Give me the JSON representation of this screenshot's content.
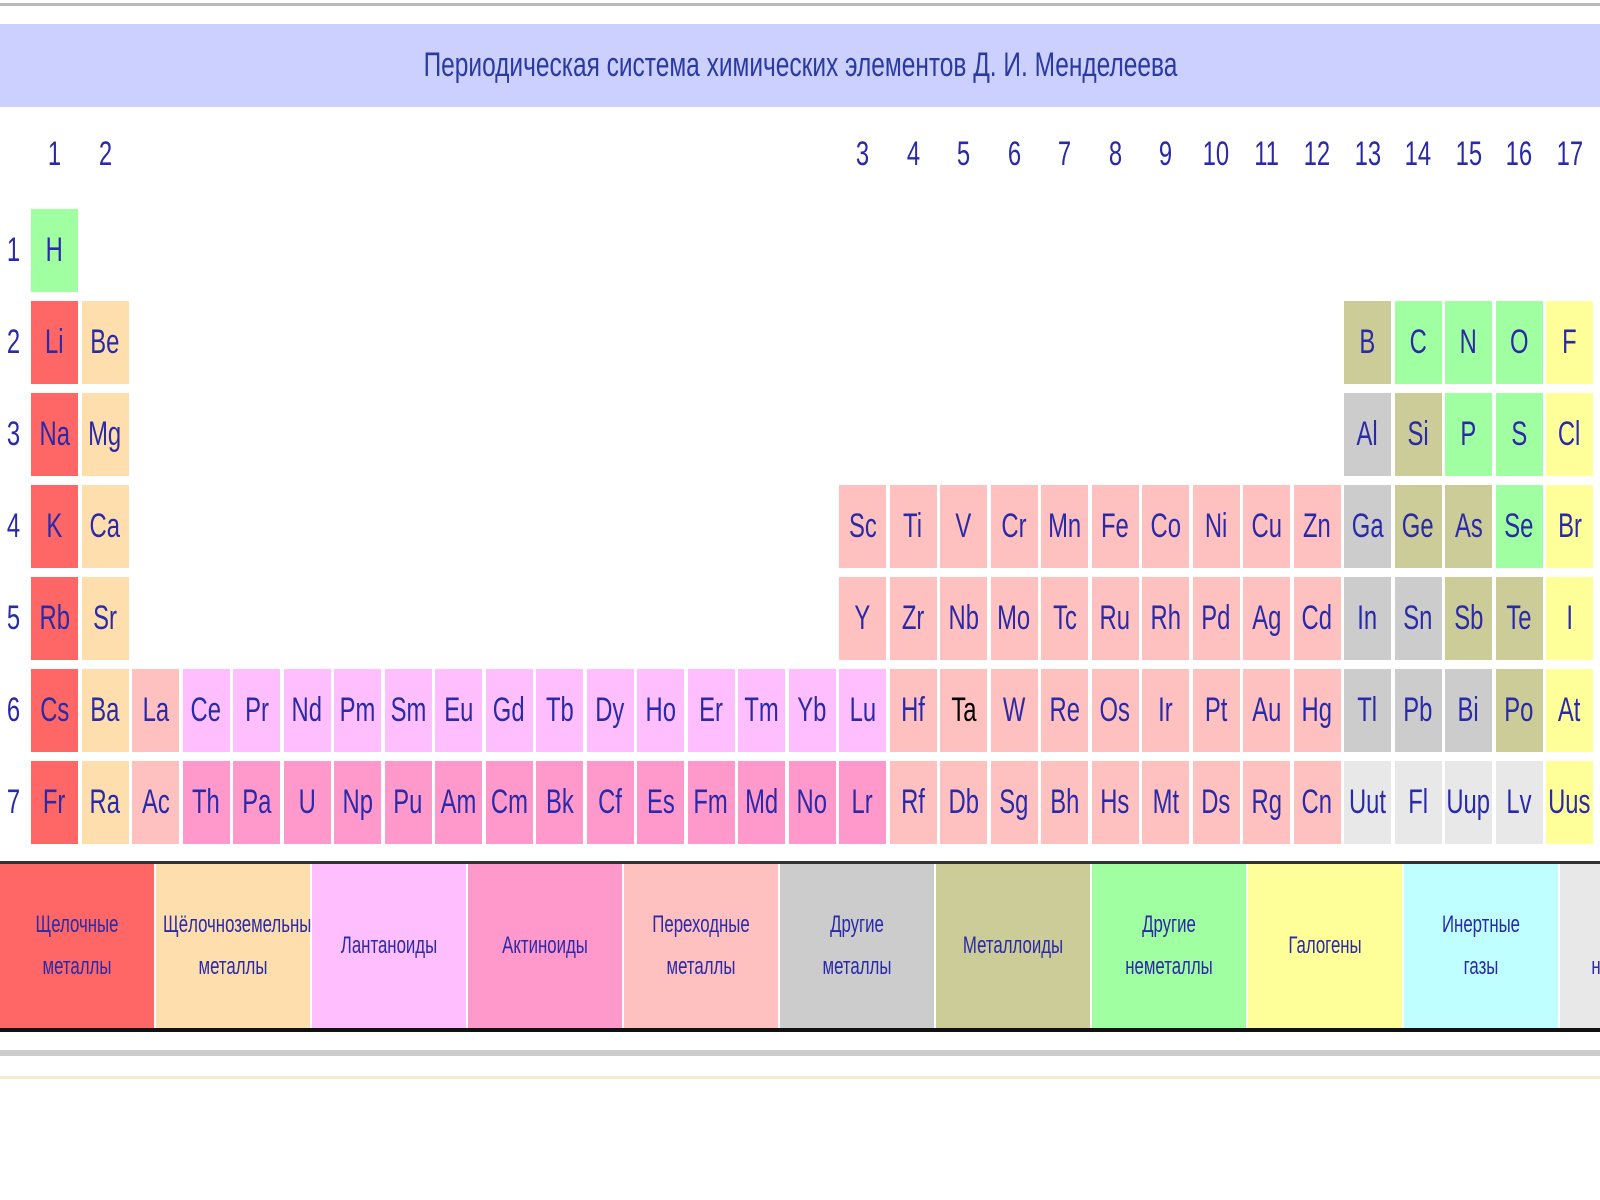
{
  "header": {
    "title": "Периодическая система химических элементов Д. И. Менделеева"
  },
  "groups": [
    "1",
    "2",
    "3",
    "4",
    "5",
    "6",
    "7",
    "8",
    "9",
    "10",
    "11",
    "12",
    "13",
    "14",
    "15",
    "16",
    "17"
  ],
  "group_columns": [
    1,
    2,
    17,
    18,
    19,
    20,
    21,
    22,
    23,
    24,
    25,
    26,
    27,
    28,
    29,
    30,
    31
  ],
  "categories": [
    {
      "name": "Щелочные металлы",
      "color": "#ff6666"
    },
    {
      "name": "Щёлочноземельные металлы",
      "color": "#ffdead"
    },
    {
      "name": "Лантаноиды",
      "color": "#ffbfff"
    },
    {
      "name": "Актиноиды",
      "color": "#ff99cc"
    },
    {
      "name": "Переходные металлы",
      "color": "#ffc0c0"
    },
    {
      "name": "Другие металлы",
      "color": "#cccccc"
    },
    {
      "name": "Металлоиды",
      "color": "#cccc99"
    },
    {
      "name": "Другие неметаллы",
      "color": "#a0ffa0"
    },
    {
      "name": "Галогены",
      "color": "#ffff99"
    },
    {
      "name": "Инертные газы",
      "color": "#c0ffff"
    },
    {
      "name": "Свойства неизвестны",
      "color": "#e8e8e8"
    }
  ],
  "periods": [
    {
      "label": "1",
      "cells": [
        {
          "symbol": "H",
          "category": 7
        },
        null,
        null,
        null,
        null,
        null,
        null,
        null,
        null,
        null,
        null,
        null,
        null,
        null,
        null,
        null,
        null,
        null,
        null,
        null,
        null,
        null,
        null,
        null,
        null,
        null,
        null,
        null,
        null,
        null,
        null
      ]
    },
    {
      "label": "2",
      "cells": [
        {
          "symbol": "Li",
          "category": 0
        },
        {
          "symbol": "Be",
          "category": 1
        },
        null,
        null,
        null,
        null,
        null,
        null,
        null,
        null,
        null,
        null,
        null,
        null,
        null,
        null,
        null,
        null,
        null,
        null,
        null,
        null,
        null,
        null,
        null,
        null,
        {
          "symbol": "B",
          "category": 6
        },
        {
          "symbol": "C",
          "category": 7
        },
        {
          "symbol": "N",
          "category": 7
        },
        {
          "symbol": "O",
          "category": 7
        },
        {
          "symbol": "F",
          "category": 8
        }
      ]
    },
    {
      "label": "3",
      "cells": [
        {
          "symbol": "Na",
          "category": 0
        },
        {
          "symbol": "Mg",
          "category": 1
        },
        null,
        null,
        null,
        null,
        null,
        null,
        null,
        null,
        null,
        null,
        null,
        null,
        null,
        null,
        null,
        null,
        null,
        null,
        null,
        null,
        null,
        null,
        null,
        null,
        {
          "symbol": "Al",
          "category": 5
        },
        {
          "symbol": "Si",
          "category": 6
        },
        {
          "symbol": "P",
          "category": 7
        },
        {
          "symbol": "S",
          "category": 7
        },
        {
          "symbol": "Cl",
          "category": 8
        }
      ]
    },
    {
      "label": "4",
      "cells": [
        {
          "symbol": "K",
          "category": 0
        },
        {
          "symbol": "Ca",
          "category": 1
        },
        null,
        null,
        null,
        null,
        null,
        null,
        null,
        null,
        null,
        null,
        null,
        null,
        null,
        null,
        {
          "symbol": "Sc",
          "category": 4
        },
        {
          "symbol": "Ti",
          "category": 4
        },
        {
          "symbol": "V",
          "category": 4
        },
        {
          "symbol": "Cr",
          "category": 4
        },
        {
          "symbol": "Mn",
          "category": 4
        },
        {
          "symbol": "Fe",
          "category": 4
        },
        {
          "symbol": "Co",
          "category": 4
        },
        {
          "symbol": "Ni",
          "category": 4
        },
        {
          "symbol": "Cu",
          "category": 4
        },
        {
          "symbol": "Zn",
          "category": 4
        },
        {
          "symbol": "Ga",
          "category": 5
        },
        {
          "symbol": "Ge",
          "category": 6
        },
        {
          "symbol": "As",
          "category": 6
        },
        {
          "symbol": "Se",
          "category": 7
        },
        {
          "symbol": "Br",
          "category": 8
        }
      ]
    },
    {
      "label": "5",
      "cells": [
        {
          "symbol": "Rb",
          "category": 0
        },
        {
          "symbol": "Sr",
          "category": 1
        },
        null,
        null,
        null,
        null,
        null,
        null,
        null,
        null,
        null,
        null,
        null,
        null,
        null,
        null,
        {
          "symbol": "Y",
          "category": 4
        },
        {
          "symbol": "Zr",
          "category": 4
        },
        {
          "symbol": "Nb",
          "category": 4
        },
        {
          "symbol": "Mo",
          "category": 4
        },
        {
          "symbol": "Tc",
          "category": 4
        },
        {
          "symbol": "Ru",
          "category": 4
        },
        {
          "symbol": "Rh",
          "category": 4
        },
        {
          "symbol": "Pd",
          "category": 4
        },
        {
          "symbol": "Ag",
          "category": 4
        },
        {
          "symbol": "Cd",
          "category": 4
        },
        {
          "symbol": "In",
          "category": 5
        },
        {
          "symbol": "Sn",
          "category": 5
        },
        {
          "symbol": "Sb",
          "category": 6
        },
        {
          "symbol": "Te",
          "category": 6
        },
        {
          "symbol": "I",
          "category": 8
        }
      ]
    },
    {
      "label": "6",
      "cells": [
        {
          "symbol": "Cs",
          "category": 0
        },
        {
          "symbol": "Ba",
          "category": 1
        },
        {
          "symbol": "La",
          "category": 4
        },
        {
          "symbol": "Ce",
          "category": 2
        },
        {
          "symbol": "Pr",
          "category": 2
        },
        {
          "symbol": "Nd",
          "category": 2
        },
        {
          "symbol": "Pm",
          "category": 2
        },
        {
          "symbol": "Sm",
          "category": 2
        },
        {
          "symbol": "Eu",
          "category": 2
        },
        {
          "symbol": "Gd",
          "category": 2
        },
        {
          "symbol": "Tb",
          "category": 2
        },
        {
          "symbol": "Dy",
          "category": 2
        },
        {
          "symbol": "Ho",
          "category": 2
        },
        {
          "symbol": "Er",
          "category": 2
        },
        {
          "symbol": "Tm",
          "category": 2
        },
        {
          "symbol": "Yb",
          "category": 2
        },
        {
          "symbol": "Lu",
          "category": 2
        },
        {
          "symbol": "Hf",
          "category": 4
        },
        {
          "symbol": "Ta",
          "category": 4,
          "text_color": "#000000"
        },
        {
          "symbol": "W",
          "category": 4
        },
        {
          "symbol": "Re",
          "category": 4
        },
        {
          "symbol": "Os",
          "category": 4
        },
        {
          "symbol": "Ir",
          "category": 4
        },
        {
          "symbol": "Pt",
          "category": 4
        },
        {
          "symbol": "Au",
          "category": 4
        },
        {
          "symbol": "Hg",
          "category": 4
        },
        {
          "symbol": "Tl",
          "category": 5
        },
        {
          "symbol": "Pb",
          "category": 5
        },
        {
          "symbol": "Bi",
          "category": 5
        },
        {
          "symbol": "Po",
          "category": 6
        },
        {
          "symbol": "At",
          "category": 8
        }
      ]
    },
    {
      "label": "7",
      "cells": [
        {
          "symbol": "Fr",
          "category": 0
        },
        {
          "symbol": "Ra",
          "category": 1
        },
        {
          "symbol": "Ac",
          "category": 4
        },
        {
          "symbol": "Th",
          "category": 3
        },
        {
          "symbol": "Pa",
          "category": 3
        },
        {
          "symbol": "U",
          "category": 3
        },
        {
          "symbol": "Np",
          "category": 3
        },
        {
          "symbol": "Pu",
          "category": 3
        },
        {
          "symbol": "Am",
          "category": 3
        },
        {
          "symbol": "Cm",
          "category": 3
        },
        {
          "symbol": "Bk",
          "category": 3
        },
        {
          "symbol": "Cf",
          "category": 3
        },
        {
          "symbol": "Es",
          "category": 3
        },
        {
          "symbol": "Fm",
          "category": 3
        },
        {
          "symbol": "Md",
          "category": 3
        },
        {
          "symbol": "No",
          "category": 3
        },
        {
          "symbol": "Lr",
          "category": 3
        },
        {
          "symbol": "Rf",
          "category": 4
        },
        {
          "symbol": "Db",
          "category": 4
        },
        {
          "symbol": "Sg",
          "category": 4
        },
        {
          "symbol": "Bh",
          "category": 4
        },
        {
          "symbol": "Hs",
          "category": 4
        },
        {
          "symbol": "Mt",
          "category": 4
        },
        {
          "symbol": "Ds",
          "category": 4
        },
        {
          "symbol": "Rg",
          "category": 4
        },
        {
          "symbol": "Cn",
          "category": 4
        },
        {
          "symbol": "Uut",
          "category": 10
        },
        {
          "symbol": "Fl",
          "category": 10
        },
        {
          "symbol": "Uup",
          "category": 10
        },
        {
          "symbol": "Lv",
          "category": 10
        },
        {
          "symbol": "Uus",
          "category": 8
        }
      ]
    }
  ]
}
